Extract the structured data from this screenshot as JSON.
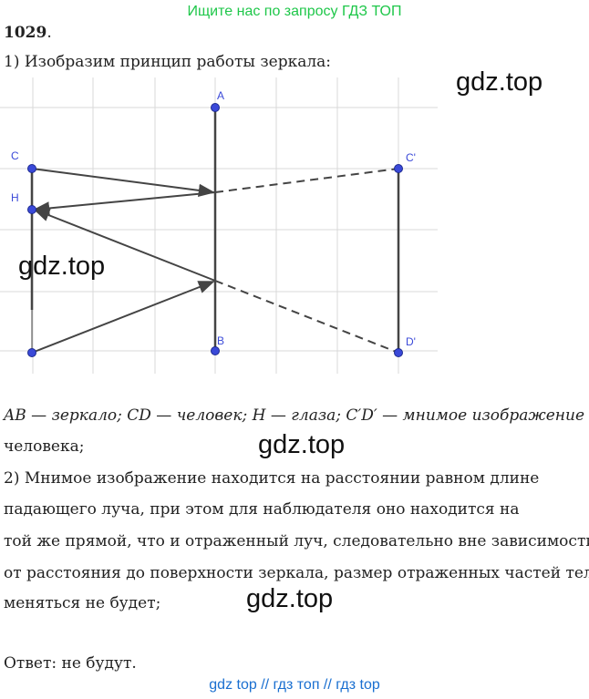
{
  "header": {
    "site_link": "Ищите нас по запросу ГДЗ ТОП"
  },
  "task": {
    "number": "1029",
    "number_suffix": "."
  },
  "text": {
    "line1": "1) Изобразим принцип работы зеркала:",
    "line2": "AB — зеркало; CD — человек; H — глаза; C′D′ — мнимое изображение",
    "line3": "человека;",
    "line4": "2) Мнимое изображение находится на расстоянии равном длине",
    "line5": "падающего луча, при этом для наблюдателя оно находится на",
    "line6": "той же прямой, что и отраженный луч, следовательно вне зависимости",
    "line7": "от расстояния до поверхности зеркала, размер отраженных частей тела",
    "line8": "меняться не будет;",
    "answer": "Ответ: не будут."
  },
  "diagram": {
    "labels": {
      "A": "A",
      "B": "B",
      "C": "C",
      "H": "H",
      "C2": "C'",
      "D2": "D'"
    },
    "colors": {
      "point": "#3a49d8",
      "line": "#444444",
      "grid": "#d8d8d8"
    }
  },
  "watermarks": {
    "w1": "gdz.top",
    "w2": "gdz.top",
    "w3": "gdz.top",
    "w4": "gdz.top"
  },
  "footer": {
    "links": "gdz top  //  гдз топ  //  гдз top"
  }
}
